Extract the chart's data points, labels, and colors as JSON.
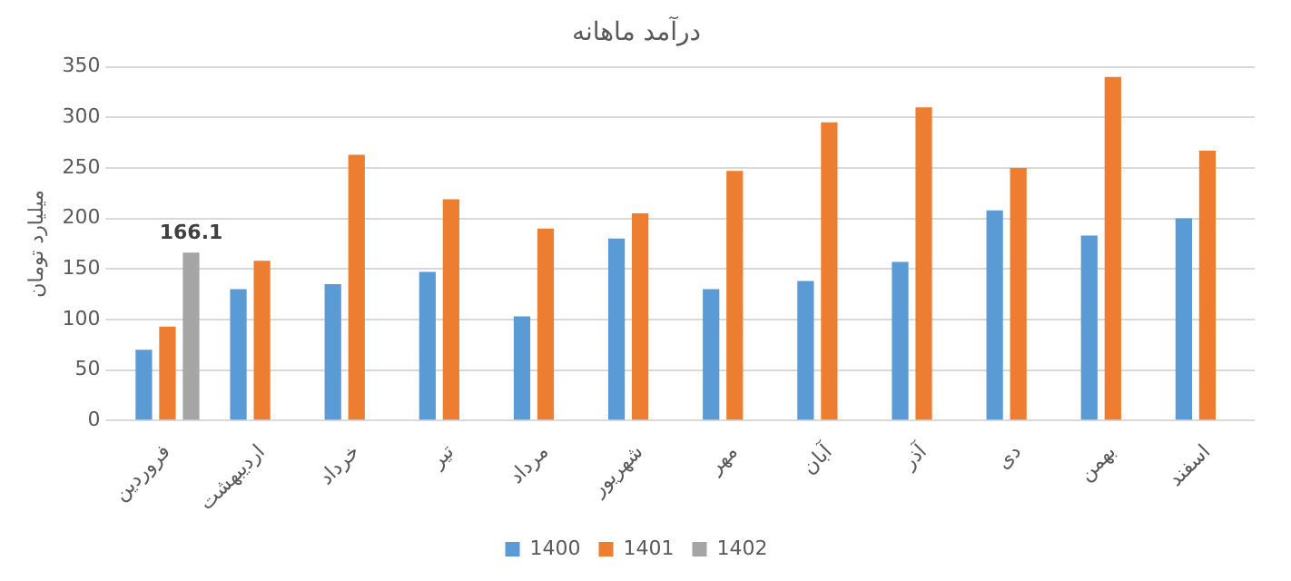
{
  "chart_data": {
    "type": "bar",
    "title": "درآمد ماهانه",
    "ylabel": "میلیارد تومان",
    "categories": [
      "فروردین",
      "اردیبهشت",
      "خرداد",
      "تیر",
      "مرداد",
      "شهریور",
      "مهر",
      "آبان",
      "آذر",
      "دی",
      "بهمن",
      "اسفند"
    ],
    "series": [
      {
        "name": "1400",
        "color": "#5b9bd5",
        "values": [
          70,
          130,
          135,
          147,
          103,
          180,
          130,
          138,
          157,
          208,
          183,
          200
        ]
      },
      {
        "name": "1401",
        "color": "#ed7d31",
        "values": [
          93,
          158,
          263,
          219,
          190,
          205,
          247,
          295,
          310,
          250,
          340,
          267
        ]
      },
      {
        "name": "1402",
        "color": "#a5a5a5",
        "values": [
          166.1,
          null,
          null,
          null,
          null,
          null,
          null,
          null,
          null,
          null,
          null,
          null
        ],
        "value_labels": [
          "166.1",
          null,
          null,
          null,
          null,
          null,
          null,
          null,
          null,
          null,
          null,
          null
        ]
      }
    ],
    "ylim": [
      0,
      350
    ],
    "yticks": [
      0,
      50,
      100,
      150,
      200,
      250,
      300,
      350
    ],
    "grid": "y",
    "legend": "bottom"
  }
}
